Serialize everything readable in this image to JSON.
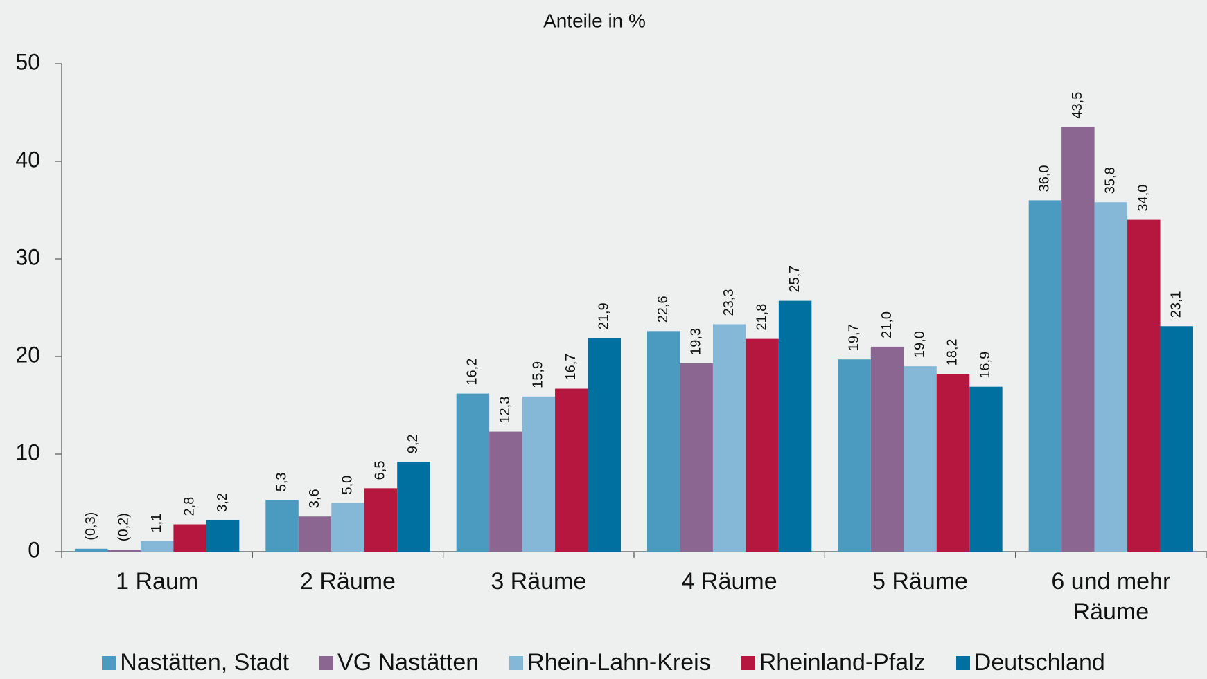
{
  "chart_data": {
    "type": "bar",
    "title": "Anteile in %",
    "categories": [
      "1 Raum",
      "2 Räume",
      "3 Räume",
      "4 Räume",
      "5 Räume",
      "6 und mehr Räume"
    ],
    "series": [
      {
        "name": "Nastätten, Stadt",
        "color": "#4a9bbf",
        "values": [
          0.3,
          5.3,
          16.2,
          22.6,
          19.7,
          36.0
        ],
        "value_labels": [
          "(0,3)",
          "5,3",
          "16,2",
          "22,6",
          "19,7",
          "36,0"
        ]
      },
      {
        "name": "VG Nastätten",
        "color": "#8b6690",
        "values": [
          0.2,
          3.6,
          12.3,
          19.3,
          21.0,
          43.5
        ],
        "value_labels": [
          "(0,2)",
          "3,6",
          "12,3",
          "19,3",
          "21,0",
          "43,5"
        ]
      },
      {
        "name": "Rhein-Lahn-Kreis",
        "color": "#85b8d6",
        "values": [
          1.1,
          5.0,
          15.9,
          23.3,
          19.0,
          35.8
        ],
        "value_labels": [
          "1,1",
          "5,0",
          "15,9",
          "23,3",
          "19,0",
          "35,8"
        ]
      },
      {
        "name": "Rheinland-Pfalz",
        "color": "#b5173e",
        "values": [
          2.8,
          6.5,
          16.7,
          21.8,
          18.2,
          34.0
        ],
        "value_labels": [
          "2,8",
          "6,5",
          "16,7",
          "21,8",
          "18,2",
          "34,0"
        ]
      },
      {
        "name": "Deutschland",
        "color": "#0070a0",
        "values": [
          3.2,
          9.2,
          21.9,
          25.7,
          16.9,
          23.1
        ],
        "value_labels": [
          "3,2",
          "9,2",
          "21,9",
          "25,7",
          "16,9",
          "23,1"
        ]
      }
    ],
    "ylim": [
      0,
      50
    ],
    "yticks": [
      0,
      10,
      20,
      30,
      40,
      50
    ],
    "legend": "bottom"
  }
}
